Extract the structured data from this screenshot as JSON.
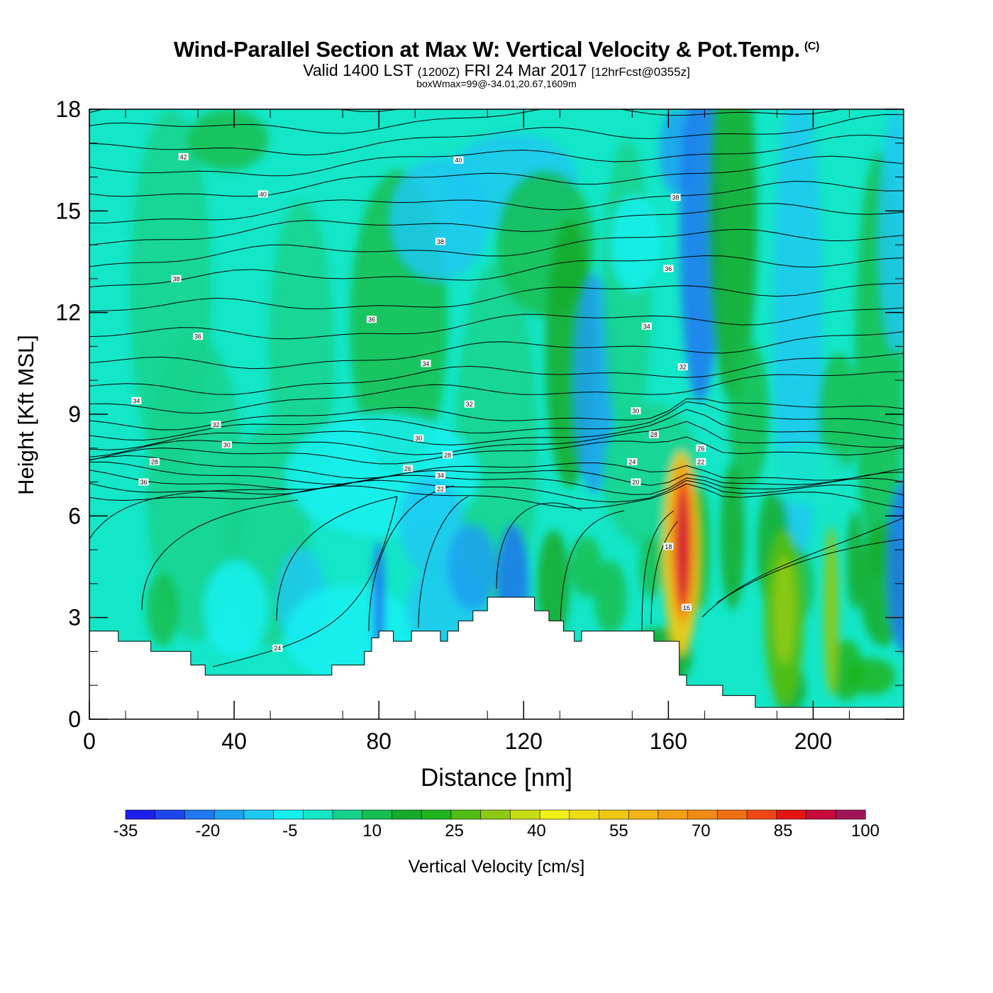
{
  "title": "Wind-Parallel Section at Max W: Vertical Velocity & Pot.Temp.",
  "copyright_mark": "(C)",
  "subtitle_main": "Valid 1400 LST",
  "subtitle_utc": "(1200Z)",
  "subtitle_date": "FRI 24 Mar 2017",
  "subtitle_fcst": "[12hrFcst@0355z]",
  "subtitle_box": "boxWmax=99@-34.01,20.67,1609m",
  "chart_data": {
    "type": "heatmap",
    "xlabel": "Distance [nm]",
    "ylabel": "Height [Kft MSL]",
    "xlim": [
      0,
      225
    ],
    "ylim": [
      0,
      18
    ],
    "x_ticks": [
      "0",
      "40",
      "80",
      "120",
      "160",
      "200"
    ],
    "x_tick_values": [
      0,
      40,
      80,
      120,
      160,
      200
    ],
    "y_ticks": [
      "0",
      "3",
      "6",
      "9",
      "12",
      "15",
      "18"
    ],
    "y_tick_values": [
      0,
      3,
      6,
      9,
      12,
      15,
      18
    ],
    "colorbar_label": "Vertical Velocity [cm/s]",
    "colorbar_ticks": [
      "-35",
      "-20",
      "-5",
      "10",
      "25",
      "40",
      "55",
      "70",
      "85",
      "100"
    ],
    "colorbar_tick_values": [
      -35,
      -20,
      -5,
      10,
      25,
      40,
      55,
      70,
      85,
      100
    ],
    "colorbar_colors": [
      "#1e1ef0",
      "#1e46f0",
      "#1e78f0",
      "#1ea0f0",
      "#1ec8f0",
      "#14f0f0",
      "#14e6c8",
      "#14d28c",
      "#14be50",
      "#14aa28",
      "#1eb41e",
      "#50be14",
      "#8cc814",
      "#c8dc14",
      "#f0f014",
      "#f0dc14",
      "#f0c814",
      "#f0b414",
      "#f0a014",
      "#f08c14",
      "#f06e14",
      "#f04614",
      "#e61414",
      "#c80a3c",
      "#a0145a"
    ],
    "max_updraft": {
      "x": 164,
      "y": 5,
      "value": 99
    },
    "terrain": [
      [
        0,
        2.6
      ],
      [
        8,
        2.6
      ],
      [
        8,
        2.3
      ],
      [
        17,
        2.3
      ],
      [
        17,
        2.0
      ],
      [
        28,
        2.0
      ],
      [
        28,
        1.6
      ],
      [
        32,
        1.6
      ],
      [
        32,
        1.3
      ],
      [
        67,
        1.3
      ],
      [
        67,
        1.6
      ],
      [
        76,
        1.6
      ],
      [
        76,
        2.0
      ],
      [
        78,
        2.0
      ],
      [
        78,
        2.4
      ],
      [
        80,
        2.4
      ],
      [
        80,
        2.6
      ],
      [
        84,
        2.6
      ],
      [
        84,
        2.3
      ],
      [
        89,
        2.3
      ],
      [
        89,
        2.6
      ],
      [
        97,
        2.6
      ],
      [
        97,
        2.3
      ],
      [
        99,
        2.3
      ],
      [
        99,
        2.6
      ],
      [
        102,
        2.6
      ],
      [
        102,
        2.9
      ],
      [
        106,
        2.9
      ],
      [
        106,
        3.2
      ],
      [
        110,
        3.2
      ],
      [
        110,
        3.6
      ],
      [
        123,
        3.6
      ],
      [
        123,
        3.2
      ],
      [
        127,
        3.2
      ],
      [
        127,
        2.9
      ],
      [
        131,
        2.9
      ],
      [
        131,
        2.6
      ],
      [
        134,
        2.6
      ],
      [
        134,
        2.3
      ],
      [
        136,
        2.3
      ],
      [
        136,
        2.6
      ],
      [
        156,
        2.6
      ],
      [
        156,
        2.3
      ],
      [
        163,
        2.3
      ],
      [
        163,
        1.3
      ],
      [
        165,
        1.3
      ],
      [
        165,
        1.0
      ],
      [
        175,
        1.0
      ],
      [
        175,
        0.7
      ],
      [
        184,
        0.7
      ],
      [
        184,
        0.35
      ],
      [
        225,
        0.35
      ]
    ],
    "theta_contour_labels": [
      {
        "x": 26,
        "y": 16.6,
        "text": "42"
      },
      {
        "x": 48,
        "y": 15.5,
        "text": "40"
      },
      {
        "x": 102,
        "y": 16.5,
        "text": "40"
      },
      {
        "x": 24,
        "y": 13.0,
        "text": "38"
      },
      {
        "x": 97,
        "y": 14.1,
        "text": "38"
      },
      {
        "x": 162,
        "y": 15.4,
        "text": "38"
      },
      {
        "x": 160,
        "y": 13.3,
        "text": "36"
      },
      {
        "x": 30,
        "y": 11.3,
        "text": "36"
      },
      {
        "x": 78,
        "y": 11.8,
        "text": "36"
      },
      {
        "x": 154,
        "y": 11.6,
        "text": "34"
      },
      {
        "x": 93,
        "y": 10.5,
        "text": "34"
      },
      {
        "x": 13,
        "y": 9.4,
        "text": "34"
      },
      {
        "x": 164,
        "y": 10.4,
        "text": "32"
      },
      {
        "x": 35,
        "y": 8.7,
        "text": "32"
      },
      {
        "x": 105,
        "y": 9.3,
        "text": "32"
      },
      {
        "x": 38,
        "y": 8.1,
        "text": "30"
      },
      {
        "x": 91,
        "y": 8.3,
        "text": "30"
      },
      {
        "x": 151,
        "y": 9.1,
        "text": "30"
      },
      {
        "x": 18,
        "y": 7.6,
        "text": "28"
      },
      {
        "x": 99,
        "y": 7.8,
        "text": "28"
      },
      {
        "x": 156,
        "y": 8.4,
        "text": "28"
      },
      {
        "x": 88,
        "y": 7.4,
        "text": "26"
      },
      {
        "x": 169,
        "y": 8.0,
        "text": "26"
      },
      {
        "x": 15,
        "y": 7.0,
        "text": "36"
      },
      {
        "x": 97,
        "y": 7.2,
        "text": "34"
      },
      {
        "x": 150,
        "y": 7.6,
        "text": "24"
      },
      {
        "x": 169,
        "y": 7.6,
        "text": "22"
      },
      {
        "x": 97,
        "y": 6.8,
        "text": "22"
      },
      {
        "x": 151,
        "y": 7.0,
        "text": "20"
      },
      {
        "x": 160,
        "y": 5.1,
        "text": "18"
      },
      {
        "x": 165,
        "y": 3.3,
        "text": "16"
      },
      {
        "x": 52,
        "y": 2.1,
        "text": "24"
      }
    ]
  }
}
